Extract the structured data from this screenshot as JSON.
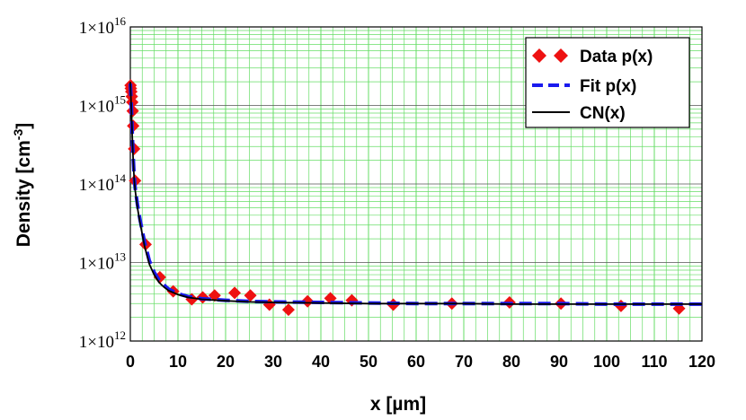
{
  "chart_data": {
    "type": "scatter",
    "xlabel": "x [µm]",
    "ylabel": {
      "base": "Density [cm",
      "exp": "-3",
      "close": "]"
    },
    "xlim": [
      0,
      120
    ],
    "ylim": [
      1000000000000.0,
      1e+16
    ],
    "y_scale": "log",
    "grid": true,
    "x_ticks": [
      "0",
      "10",
      "20",
      "30",
      "40",
      "50",
      "60",
      "70",
      "80",
      "90",
      "100",
      "110",
      "120"
    ],
    "y_ticks": [
      {
        "value": 1000000000000.0,
        "mant": "1×10",
        "exp": "12"
      },
      {
        "value": 10000000000000.0,
        "mant": "1×10",
        "exp": "13"
      },
      {
        "value": 100000000000000.0,
        "mant": "1×10",
        "exp": "14"
      },
      {
        "value": 1000000000000000.0,
        "mant": "1×10",
        "exp": "15"
      },
      {
        "value": 1e+16,
        "mant": "1×10",
        "exp": "16"
      }
    ],
    "legend": {
      "position": "top-right"
    },
    "colors": {
      "data": "#ee1111",
      "fit": "#1a1aee",
      "cn": "#000000",
      "grid": "#66dd66"
    },
    "series": [
      {
        "name": "Data p(x)",
        "style": "markers",
        "x": [
          0.05,
          0.1,
          0.2,
          0.3,
          0.4,
          0.5,
          0.6,
          0.8,
          1.0,
          3.2,
          6.2,
          9.0,
          12.9,
          15.2,
          17.7,
          21.9,
          25.2,
          29.2,
          33.2,
          37.2,
          42.0,
          46.5,
          55.2,
          67.5,
          79.6,
          90.4,
          103.0,
          115.2
        ],
        "y": [
          1800000000000000.0,
          1650000000000000.0,
          1500000000000000.0,
          1300000000000000.0,
          1100000000000000.0,
          850000000000000.0,
          550000000000000.0,
          280000000000000.0,
          110000000000000.0,
          17000000000000.0,
          6500000000000.0,
          4300000000000.0,
          3400000000000.0,
          3600000000000.0,
          3800000000000.0,
          4100000000000.0,
          3800000000000.0,
          2900000000000.0,
          2500000000000.0,
          3200000000000.0,
          3500000000000.0,
          3300000000000.0,
          2900000000000.0,
          3000000000000.0,
          3100000000000.0,
          3000000000000.0,
          2800000000000.0,
          2600000000000.0
        ]
      },
      {
        "name": "Fit p(x)",
        "style": "dashed",
        "x": [
          0,
          0.2,
          0.4,
          0.6,
          0.8,
          1,
          1.5,
          2,
          3,
          4,
          5,
          6,
          7,
          8,
          10,
          12,
          15,
          20,
          25,
          30,
          40,
          50,
          60,
          70,
          80,
          90,
          100,
          110,
          120
        ],
        "y": [
          1900000000000000.0,
          1000000000000000.0,
          450000000000000.0,
          220000000000000.0,
          130000000000000.0,
          90000000000000.0,
          55000000000000.0,
          36000000000000.0,
          18000000000000.0,
          10500000000000.0,
          7500000000000.0,
          6000000000000.0,
          5200000000000.0,
          4600000000000.0,
          4000000000000.0,
          3700000000000.0,
          3450000000000.0,
          3300000000000.0,
          3200000000000.0,
          3150000000000.0,
          3100000000000.0,
          3050000000000.0,
          3000000000000.0,
          3000000000000.0,
          3000000000000.0,
          3000000000000.0,
          2950000000000.0,
          2950000000000.0,
          2950000000000.0
        ]
      },
      {
        "name": "CN(x)",
        "style": "solid",
        "x": [
          0,
          0.2,
          0.4,
          0.6,
          0.8,
          1,
          1.5,
          2,
          3,
          4,
          5,
          6,
          7,
          8,
          10,
          12,
          15,
          20,
          25,
          30,
          40,
          50,
          60,
          70,
          80,
          90,
          100,
          110,
          120
        ],
        "y": [
          2000000000000000.0,
          950000000000000.0,
          420000000000000.0,
          200000000000000.0,
          120000000000000.0,
          85000000000000.0,
          50000000000000.0,
          33000000000000.0,
          16000000000000.0,
          9500000000000.0,
          7000000000000.0,
          5600000000000.0,
          4900000000000.0,
          4400000000000.0,
          3900000000000.0,
          3600000000000.0,
          3400000000000.0,
          3250000000000.0,
          3150000000000.0,
          3100000000000.0,
          3050000000000.0,
          3000000000000.0,
          3000000000000.0,
          3000000000000.0,
          2950000000000.0,
          2950000000000.0,
          2950000000000.0,
          2950000000000.0,
          2950000000000.0
        ]
      }
    ]
  }
}
